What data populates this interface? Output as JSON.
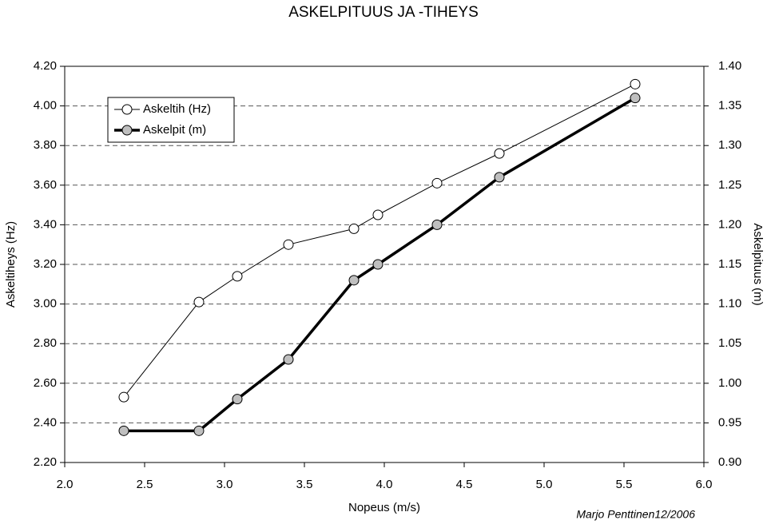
{
  "chart_data": {
    "type": "line",
    "title": "ASKELPITUUS JA -TIHEYS",
    "x_label": "Nopeus (m/s)",
    "y_label": "Askeltiheys (Hz)",
    "y2_label": "Askelpituus (m)",
    "annotation": "Marjo Penttinen12/2006",
    "x": [
      2.37,
      2.84,
      3.08,
      3.4,
      3.81,
      3.96,
      4.33,
      4.72,
      5.57
    ],
    "series": [
      {
        "name": "Askeltih (Hz)",
        "color": "#000000",
        "marker_color": "#ffffff",
        "line_width": 1,
        "values": [
          2.53,
          3.01,
          3.14,
          3.3,
          3.38,
          3.45,
          3.61,
          3.76,
          4.11
        ]
      },
      {
        "name": "Askelpit (m)",
        "color": "#000000",
        "marker_color": "#bfbfbf",
        "line_width": 3.5,
        "axis": "y2",
        "values": [
          0.94,
          0.94,
          0.98,
          1.03,
          1.13,
          1.15,
          1.2,
          1.26,
          1.36
        ]
      }
    ],
    "xlim": [
      2,
      6
    ],
    "xticks": [
      {
        "value": 2,
        "label": "2.0"
      },
      2.5,
      {
        "value": 3,
        "label": "3.0"
      },
      3.5,
      {
        "value": 4,
        "label": "4.0"
      },
      4.5,
      {
        "value": 5,
        "label": "5.0"
      },
      5.5,
      {
        "value": 6,
        "label": "6.0"
      }
    ],
    "ylim": [
      2.2,
      4.2
    ],
    "yticks": [
      {
        "value": 2.2,
        "label": "2.20"
      },
      {
        "value": 2.4,
        "label": "2.40"
      },
      {
        "value": 2.6,
        "label": "2.60"
      },
      {
        "value": 2.8,
        "label": "2.80"
      },
      {
        "value": 3,
        "label": "3.00"
      },
      {
        "value": 3.2,
        "label": "3.20"
      },
      {
        "value": 3.4,
        "label": "3.40"
      },
      {
        "value": 3.6,
        "label": "3.60"
      },
      {
        "value": 3.8,
        "label": "3.80"
      },
      {
        "value": 4,
        "label": "4.00"
      },
      {
        "value": 4.2,
        "label": "4.20"
      }
    ],
    "y2lim": [
      0.9,
      1.4
    ],
    "y2ticks": [
      {
        "value": 0.9,
        "label": "0.90"
      },
      0.95,
      {
        "value": 1,
        "label": "1.00"
      },
      1.05,
      {
        "value": 1.1,
        "label": "1.10"
      },
      1.15,
      {
        "value": 1.2,
        "label": "1.20"
      },
      1.25,
      {
        "value": 1.3,
        "label": "1.30"
      },
      1.35,
      {
        "value": 1.4,
        "label": "1.40"
      }
    ],
    "grid": true,
    "legend": "upper left"
  }
}
